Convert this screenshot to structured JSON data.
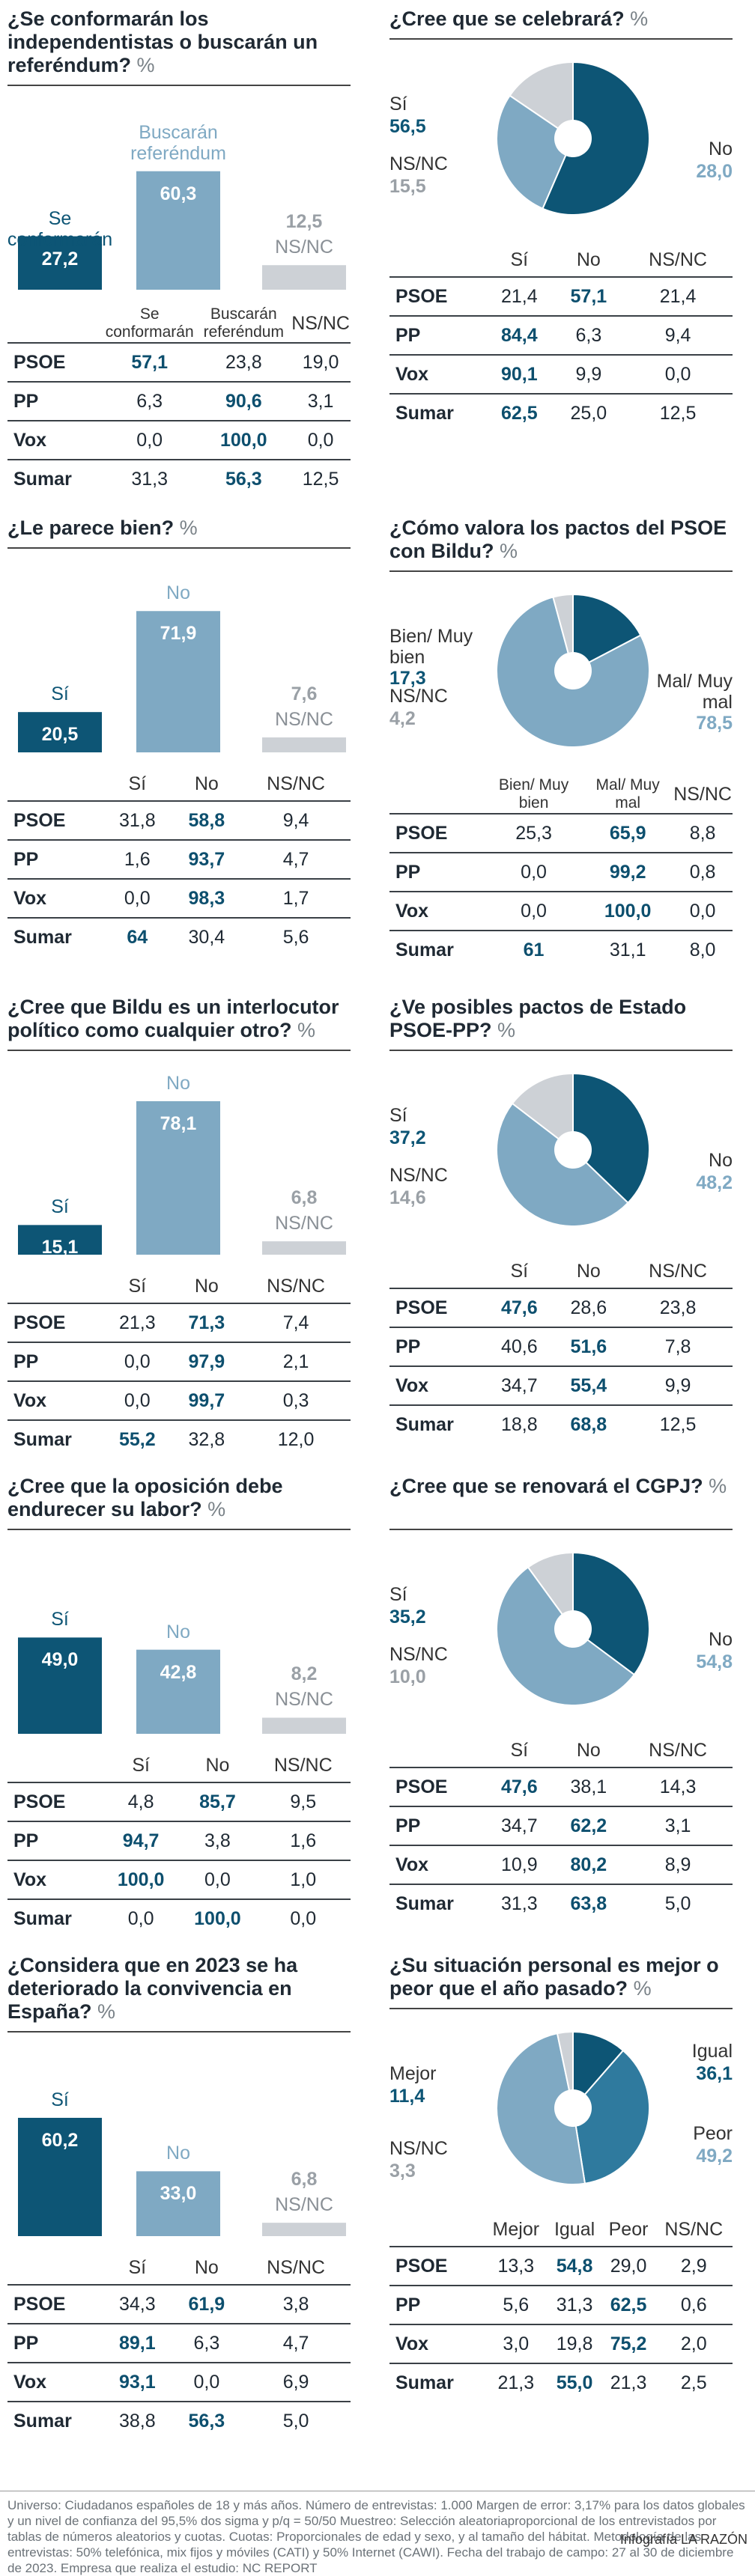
{
  "colors": {
    "dark": "#0d5575",
    "light": "#7fa9c3",
    "grey": "#cdd1d6",
    "hi": "#0d4f6e"
  },
  "panels": [
    {
      "title": "¿Se conformarán los independentistas o buscarán un referéndum?",
      "pct": "%",
      "type": "bar",
      "chart_data": {
        "type": "bar",
        "categories": [
          "Se conformarán",
          "Buscarán referéndum",
          "NS/NC"
        ],
        "values": [
          27.2,
          60.3,
          12.5
        ],
        "value_labels": [
          "27,2",
          "60,3",
          "12,5"
        ]
      },
      "headers": [
        "Se conformarán",
        "Buscarán referéndum",
        "NS/NC"
      ],
      "rows": [
        [
          "PSOE",
          "57,1",
          "23,8",
          "19,0"
        ],
        [
          "PP",
          "6,3",
          "90,6",
          "3,1"
        ],
        [
          "Vox",
          "0,0",
          "100,0",
          "0,0"
        ],
        [
          "Sumar",
          "31,3",
          "56,3",
          "12,5"
        ]
      ],
      "hi": [
        1,
        2,
        2,
        2
      ]
    },
    {
      "title": "¿Cree que se celebrará?",
      "pct": "%",
      "type": "pie",
      "chart_data": {
        "type": "pie",
        "categories": [
          "Sí",
          "No",
          "NS/NC"
        ],
        "values": [
          56.5,
          28.0,
          15.5
        ],
        "value_labels": [
          "56,5",
          "28,0",
          "15,5"
        ]
      },
      "headers": [
        "Sí",
        "No",
        "NS/NC"
      ],
      "rows": [
        [
          "PSOE",
          "21,4",
          "57,1",
          "21,4"
        ],
        [
          "PP",
          "84,4",
          "6,3",
          "9,4"
        ],
        [
          "Vox",
          "90,1",
          "9,9",
          "0,0"
        ],
        [
          "Sumar",
          "62,5",
          "25,0",
          "12,5"
        ]
      ],
      "hi": [
        2,
        1,
        1,
        1
      ]
    },
    {
      "title": "¿Le parece bien?",
      "pct": "%",
      "type": "bar",
      "chart_data": {
        "type": "bar",
        "categories": [
          "Sí",
          "No",
          "NS/NC"
        ],
        "values": [
          20.5,
          71.9,
          7.6
        ],
        "value_labels": [
          "20,5",
          "71,9",
          "7,6"
        ]
      },
      "headers": [
        "Sí",
        "No",
        "NS/NC"
      ],
      "rows": [
        [
          "PSOE",
          "31,8",
          "58,8",
          "9,4"
        ],
        [
          "PP",
          "1,6",
          "93,7",
          "4,7"
        ],
        [
          "Vox",
          "0,0",
          "98,3",
          "1,7"
        ],
        [
          "Sumar",
          "64",
          "30,4",
          "5,6"
        ]
      ],
      "hi": [
        2,
        2,
        2,
        1
      ]
    },
    {
      "title": "¿Cómo valora los pactos del PSOE con Bildu?",
      "pct": "%",
      "type": "pie",
      "chart_data": {
        "type": "pie",
        "categories": [
          "Bien/ Muy bien",
          "Mal/ Muy mal",
          "NS/NC"
        ],
        "values": [
          17.3,
          78.5,
          4.2
        ],
        "value_labels": [
          "17,3",
          "78,5",
          "4,2"
        ]
      },
      "headers": [
        "Bien/ Muy bien",
        "Mal/ Muy mal",
        "NS/NC"
      ],
      "rows": [
        [
          "PSOE",
          "25,3",
          "65,9",
          "8,8"
        ],
        [
          "PP",
          "0,0",
          "99,2",
          "0,8"
        ],
        [
          "Vox",
          "0,0",
          "100,0",
          "0,0"
        ],
        [
          "Sumar",
          "61",
          "31,1",
          "8,0"
        ]
      ],
      "hi": [
        2,
        2,
        2,
        1
      ]
    },
    {
      "title": "¿Cree que Bildu es un interlocutor político como cualquier otro?",
      "pct": "%",
      "type": "bar",
      "chart_data": {
        "type": "bar",
        "categories": [
          "Sí",
          "No",
          "NS/NC"
        ],
        "values": [
          15.1,
          78.1,
          6.8
        ],
        "value_labels": [
          "15,1",
          "78,1",
          "6,8"
        ]
      },
      "headers": [
        "Sí",
        "No",
        "NS/NC"
      ],
      "rows": [
        [
          "PSOE",
          "21,3",
          "71,3",
          "7,4"
        ],
        [
          "PP",
          "0,0",
          "97,9",
          "2,1"
        ],
        [
          "Vox",
          "0,0",
          "99,7",
          "0,3"
        ],
        [
          "Sumar",
          "55,2",
          "32,8",
          "12,0"
        ]
      ],
      "hi": [
        2,
        2,
        2,
        1
      ]
    },
    {
      "title": "¿Ve posibles pactos de Estado PSOE-PP?",
      "pct": "%",
      "type": "pie",
      "chart_data": {
        "type": "pie",
        "categories": [
          "Sí",
          "No",
          "NS/NC"
        ],
        "values": [
          37.2,
          48.2,
          14.6
        ],
        "value_labels": [
          "37,2",
          "48,2",
          "14,6"
        ]
      },
      "headers": [
        "Sí",
        "No",
        "NS/NC"
      ],
      "rows": [
        [
          "PSOE",
          "47,6",
          "28,6",
          "23,8"
        ],
        [
          "PP",
          "40,6",
          "51,6",
          "7,8"
        ],
        [
          "Vox",
          "34,7",
          "55,4",
          "9,9"
        ],
        [
          "Sumar",
          "18,8",
          "68,8",
          "12,5"
        ]
      ],
      "hi": [
        1,
        2,
        2,
        2
      ]
    },
    {
      "title": "¿Cree que la oposición debe endurecer su labor?",
      "pct": "%",
      "type": "bar",
      "chart_data": {
        "type": "bar",
        "categories": [
          "Sí",
          "No",
          "NS/NC"
        ],
        "values": [
          49.0,
          42.8,
          8.2
        ],
        "value_labels": [
          "49,0",
          "42,8",
          "8,2"
        ]
      },
      "headers": [
        "Sí",
        "No",
        "NS/NC"
      ],
      "rows": [
        [
          "PSOE",
          "4,8",
          "85,7",
          "9,5"
        ],
        [
          "PP",
          "94,7",
          "3,8",
          "1,6"
        ],
        [
          "Vox",
          "100,0",
          "0,0",
          "1,0"
        ],
        [
          "Sumar",
          "0,0",
          "100,0",
          "0,0"
        ]
      ],
      "hi": [
        2,
        1,
        1,
        2
      ]
    },
    {
      "title": "¿Cree que se renovará el CGPJ?",
      "pct": "%",
      "type": "pie",
      "chart_data": {
        "type": "pie",
        "categories": [
          "Sí",
          "No",
          "NS/NC"
        ],
        "values": [
          35.2,
          54.8,
          10.0
        ],
        "value_labels": [
          "35,2",
          "54,8",
          "10,0"
        ]
      },
      "headers": [
        "Sí",
        "No",
        "NS/NC"
      ],
      "rows": [
        [
          "PSOE",
          "47,6",
          "38,1",
          "14,3"
        ],
        [
          "PP",
          "34,7",
          "62,2",
          "3,1"
        ],
        [
          "Vox",
          "10,9",
          "80,2",
          "8,9"
        ],
        [
          "Sumar",
          "31,3",
          "63,8",
          "5,0"
        ]
      ],
      "hi": [
        1,
        2,
        2,
        2
      ]
    },
    {
      "title": "¿Considera que en 2023 se ha deteriorado la convivencia en España?",
      "pct": "%",
      "type": "bar",
      "chart_data": {
        "type": "bar",
        "categories": [
          "Sí",
          "No",
          "NS/NC"
        ],
        "values": [
          60.2,
          33.0,
          6.8
        ],
        "value_labels": [
          "60,2",
          "33,0",
          "6,8"
        ]
      },
      "headers": [
        "Sí",
        "No",
        "NS/NC"
      ],
      "rows": [
        [
          "PSOE",
          "34,3",
          "61,9",
          "3,8"
        ],
        [
          "PP",
          "89,1",
          "6,3",
          "4,7"
        ],
        [
          "Vox",
          "93,1",
          "0,0",
          "6,9"
        ],
        [
          "Sumar",
          "38,8",
          "56,3",
          "5,0"
        ]
      ],
      "hi": [
        2,
        1,
        1,
        2
      ]
    },
    {
      "title": "¿Su situación personal es mejor o peor que el año pasado?",
      "pct": "%",
      "type": "pie4",
      "chart_data": {
        "type": "pie",
        "categories": [
          "Mejor",
          "Igual",
          "Peor",
          "NS/NC"
        ],
        "values": [
          11.4,
          36.1,
          49.2,
          3.3
        ],
        "value_labels": [
          "11,4",
          "36,1",
          "49,2",
          "3,3"
        ]
      },
      "headers": [
        "Mejor",
        "Igual",
        "Peor",
        "NS/NC"
      ],
      "rows": [
        [
          "PSOE",
          "13,3",
          "54,8",
          "29,0",
          "2,9"
        ],
        [
          "PP",
          "5,6",
          "31,3",
          "62,5",
          "0,6"
        ],
        [
          "Vox",
          "3,0",
          "19,8",
          "75,2",
          "2,0"
        ],
        [
          "Sumar",
          "21,3",
          "55,0",
          "21,3",
          "2,5"
        ]
      ],
      "hi": [
        2,
        3,
        3,
        2
      ]
    }
  ],
  "footer": "Universo: Ciudadanos españoles de 18 y más años. Número de entrevistas: 1.000 Margen de error: 3,17% para los datos globales y un nivel de confianza del 95,5% dos sigma y p/q = 50/50 Muestreo: Selección aleatoriaproporcional de los entrevistados por tablas de números aleatorios y cuotas. Cuotas: Proporcionales de edad y sexo, y al tamaño del hábitat. Metodología de las entrevistas: 50% telefónica, mix fijos y móviles (CATI) y 50% Internet (CAWI). Fecha del trabajo de campo: 27 al 30 de diciembre de 2023. Empresa que realiza el estudio: NC REPORT",
  "credit": "Infografía LA RAZÓN"
}
